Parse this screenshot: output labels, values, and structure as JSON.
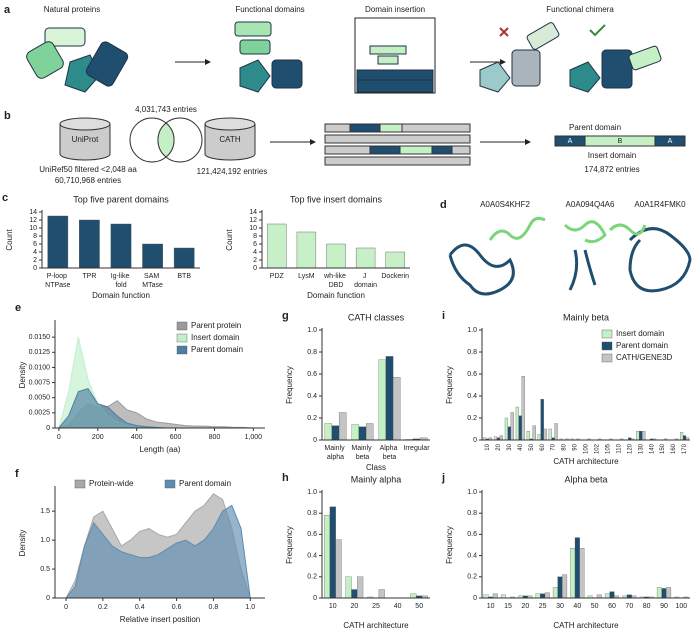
{
  "panel_a": {
    "label": "a",
    "steps": [
      "Natural proteins",
      "Functional domains",
      "Domain insertion",
      "Functional chimera"
    ]
  },
  "panel_b": {
    "label": "b",
    "uniprot": "UniProt",
    "cath": "CATH",
    "overlap": "4,031,743 entries",
    "uniprot_filter": "UniRef50 filtered <2,048 aa",
    "uniprot_entries": "60,710,968 entries",
    "cath_entries": "121,424,192 entries",
    "parent_domain": "Parent domain",
    "insert_domain": "Insert domain",
    "segments": [
      "A",
      "B",
      "A"
    ],
    "result": "174,872 entries"
  },
  "panel_d": {
    "label": "d",
    "structures": [
      "A0A0S4KHF2",
      "A0A094Q4A6",
      "A0A1R4FMK0"
    ]
  },
  "chart_data": [
    {
      "type": "bar",
      "panel": "c",
      "title": "Top five parent domains",
      "xlabel": "Domain function",
      "ylabel": "Count",
      "categories": [
        "P-loop NTPase",
        "TPR",
        "Ig-like fold",
        "SAM MTase",
        "BTB"
      ],
      "values": [
        13,
        12,
        11,
        6,
        5
      ],
      "color": "#1f4e6e",
      "ylim": [
        0,
        14
      ],
      "yticks": [
        0,
        2,
        4,
        6,
        8,
        10,
        12,
        14
      ]
    },
    {
      "type": "bar",
      "title": "Top five insert domains",
      "xlabel": "Domain function",
      "ylabel": "Count",
      "categories": [
        "PDZ",
        "LysM",
        "wh-like DBD",
        "J domain",
        "Dockerin"
      ],
      "values": [
        11,
        9,
        6,
        5,
        4
      ],
      "color": "#c8f0c8",
      "ylim": [
        0,
        14
      ],
      "yticks": [
        0,
        2,
        4,
        6,
        8,
        10,
        12,
        14
      ]
    },
    {
      "type": "area",
      "panel": "e",
      "xlabel": "Length (aa)",
      "ylabel": "Density",
      "legend": "upper right",
      "x": [
        0,
        50,
        100,
        150,
        200,
        250,
        300,
        350,
        400,
        450,
        500,
        550,
        600,
        650,
        700,
        750,
        800,
        850,
        900,
        950,
        1000
      ],
      "series": [
        {
          "name": "Parent protein",
          "color": "#9a9a9a",
          "values": [
            0,
            0.0005,
            0.0025,
            0.004,
            0.0035,
            0.0035,
            0.0045,
            0.003,
            0.0025,
            0.0015,
            0.001,
            0.0008,
            0.0006,
            0.0004,
            0.0003,
            0.0003,
            0.0002,
            0.0002,
            0.0001,
            0.0001,
            0
          ]
        },
        {
          "name": "Insert domain",
          "color": "#c2efcb",
          "values": [
            0,
            0.006,
            0.015,
            0.008,
            0.004,
            0.002,
            0.001,
            0.0005,
            0.0003,
            0.0001,
            0,
            0,
            0,
            0,
            0,
            0,
            0,
            0,
            0,
            0,
            0
          ]
        },
        {
          "name": "Parent domain",
          "color": "#4d7fa3",
          "values": [
            0,
            0.002,
            0.006,
            0.0065,
            0.004,
            0.0035,
            0.002,
            0.0008,
            0.0004,
            0.0002,
            0.0001,
            0,
            0,
            0,
            0,
            0,
            0,
            0,
            0,
            0,
            0
          ]
        }
      ],
      "xlim": [
        -20,
        1060
      ],
      "xticks": [
        0,
        200,
        400,
        600,
        800,
        {
          "value": 1000,
          "label": "1,000"
        }
      ],
      "ylim": [
        0,
        0.0175
      ],
      "yticks": [
        0,
        0.0025,
        {
          "value": 0.005,
          "label": "0.0050"
        },
        0.0075,
        {
          "value": 0.01,
          "label": "0.0100"
        },
        0.0125,
        {
          "value": 0.015,
          "label": "0.0150"
        }
      ]
    },
    {
      "type": "area",
      "panel": "f",
      "xlabel": "Relative insert position",
      "ylabel": "Density",
      "legend": "upper center",
      "x": [
        0,
        0.05,
        0.1,
        0.15,
        0.2,
        0.25,
        0.3,
        0.35,
        0.4,
        0.45,
        0.5,
        0.55,
        0.6,
        0.65,
        0.7,
        0.75,
        0.8,
        0.85,
        0.9,
        0.95,
        1
      ],
      "series": [
        {
          "name": "Protein-wide",
          "color": "#a8a8a8",
          "values": [
            0,
            0.3,
            0.9,
            1.4,
            1.5,
            1.2,
            0.9,
            1.0,
            1.15,
            1.2,
            1.1,
            1.05,
            1.1,
            1.3,
            1.5,
            1.6,
            1.8,
            1.7,
            1.2,
            0.5,
            0
          ]
        },
        {
          "name": "Parent domain",
          "color": "#5d8db0",
          "values": [
            0,
            0.2,
            0.9,
            1.3,
            1.1,
            0.9,
            0.8,
            0.75,
            0.7,
            0.7,
            0.75,
            0.85,
            0.95,
            1.0,
            0.9,
            1.0,
            1.2,
            1.5,
            1.6,
            1.2,
            0
          ]
        }
      ],
      "xlim": [
        -0.06,
        1.08
      ],
      "xticks": [
        0,
        0.2,
        0.4,
        0.6,
        0.8,
        {
          "value": 1,
          "label": "1.0"
        }
      ],
      "ylim": [
        0,
        1.9
      ],
      "yticks": [
        0,
        0.5,
        {
          "value": 1,
          "label": "1.0"
        },
        1.5
      ]
    },
    {
      "type": "bar",
      "panel": "g",
      "title": "CATH classes",
      "xlabel": "Class",
      "ylabel": "Frequency",
      "categories": [
        "Mainly alpha",
        "Mainly beta",
        "Alpha beta",
        "Irregular"
      ],
      "series": [
        {
          "color": "#c5efc5",
          "values": [
            0.15,
            0.14,
            0.73,
            0.005
          ]
        },
        {
          "color": "#1f4e6e",
          "values": [
            0.13,
            0.12,
            0.76,
            0.01
          ]
        },
        {
          "color": "#c4c4c4",
          "values": [
            0.25,
            0.15,
            0.57,
            0.02
          ]
        }
      ],
      "ylim": [
        0,
        1
      ],
      "yticks": [
        0,
        0.2,
        0.4,
        0.6,
        0.8,
        {
          "value": 1,
          "label": "1.0"
        }
      ]
    },
    {
      "type": "bar",
      "panel": "h",
      "title": "Mainly alpha",
      "xlabel": "CATH architecture",
      "ylabel": "Frequency",
      "categories": [
        "10",
        "20",
        "25",
        "40",
        "50"
      ],
      "series": [
        {
          "color": "#c5efc5",
          "values": [
            0.78,
            0.2,
            0.01,
            0,
            0.04
          ]
        },
        {
          "color": "#1f4e6e",
          "values": [
            0.86,
            0.08,
            0,
            0,
            0.02
          ]
        },
        {
          "color": "#c4c4c4",
          "values": [
            0.55,
            0.2,
            0.08,
            0,
            0.02
          ]
        }
      ],
      "ylim": [
        0,
        1
      ],
      "yticks": [
        0,
        0.2,
        0.4,
        0.6,
        0.8,
        {
          "value": 1,
          "label": "1.0"
        }
      ]
    },
    {
      "type": "bar",
      "panel": "i",
      "title": "Mainly beta",
      "xlabel": "CATH architecture",
      "ylabel": "Frequency",
      "legend": "upper right",
      "categories": [
        "10",
        "20",
        "30",
        "40",
        "50",
        "60",
        "70",
        "80",
        "90",
        "100",
        "102",
        "105",
        "110",
        "120",
        "130",
        "140",
        "150",
        "160",
        "170"
      ],
      "series": [
        {
          "name": "Insert domain",
          "color": "#c5efc5",
          "values": [
            0.02,
            0.03,
            0.2,
            0.3,
            0.08,
            0.05,
            0.1,
            0.01,
            0.01,
            0,
            0,
            0,
            0,
            0,
            0.08,
            0,
            0,
            0,
            0.07
          ]
        },
        {
          "name": "Parent domain",
          "color": "#1f4e6e",
          "values": [
            0.01,
            0.02,
            0.12,
            0.22,
            0.01,
            0.37,
            0.02,
            0,
            0,
            0,
            0,
            0,
            0,
            0.02,
            0.08,
            0.01,
            0,
            0,
            0.04
          ]
        },
        {
          "name": "CATH/GENE3D",
          "color": "#c4c4c4",
          "values": [
            0.02,
            0.04,
            0.25,
            0.58,
            0.13,
            0.1,
            0.15,
            0.01,
            0.01,
            0.01,
            0.01,
            0.01,
            0.01,
            0.01,
            0.08,
            0.01,
            0.01,
            0.01,
            0.02
          ]
        }
      ],
      "ylim": [
        0,
        1
      ],
      "yticks": [
        0,
        0.2,
        0.4,
        0.6,
        0.8,
        {
          "value": 1,
          "label": "1.0"
        }
      ]
    },
    {
      "type": "bar",
      "panel": "j",
      "title": "Alpha beta",
      "xlabel": "CATH architecture",
      "ylabel": "Frequency",
      "categories": [
        "10",
        "15",
        "20",
        "25",
        "30",
        "40",
        "50",
        "60",
        "70",
        "80",
        "90",
        "100"
      ],
      "series": [
        {
          "color": "#c5efc5",
          "values": [
            0.03,
            0.03,
            0.02,
            0.04,
            0.1,
            0.47,
            0.02,
            0.04,
            0.02,
            0.01,
            0.1,
            0.01
          ]
        },
        {
          "color": "#1f4e6e",
          "values": [
            0.01,
            0,
            0.02,
            0.04,
            0.2,
            0.57,
            0,
            0.06,
            0.03,
            0.01,
            0.09,
            0
          ]
        },
        {
          "color": "#c4c4c4",
          "values": [
            0.04,
            0.01,
            0.02,
            0.05,
            0.22,
            0.47,
            0.03,
            0.02,
            0.02,
            0.01,
            0.1,
            0.01
          ]
        }
      ],
      "ylim": [
        0,
        1
      ],
      "yticks": [
        0,
        0.2,
        0.4,
        0.6,
        0.8,
        {
          "value": 1,
          "label": "1.0"
        }
      ]
    }
  ]
}
